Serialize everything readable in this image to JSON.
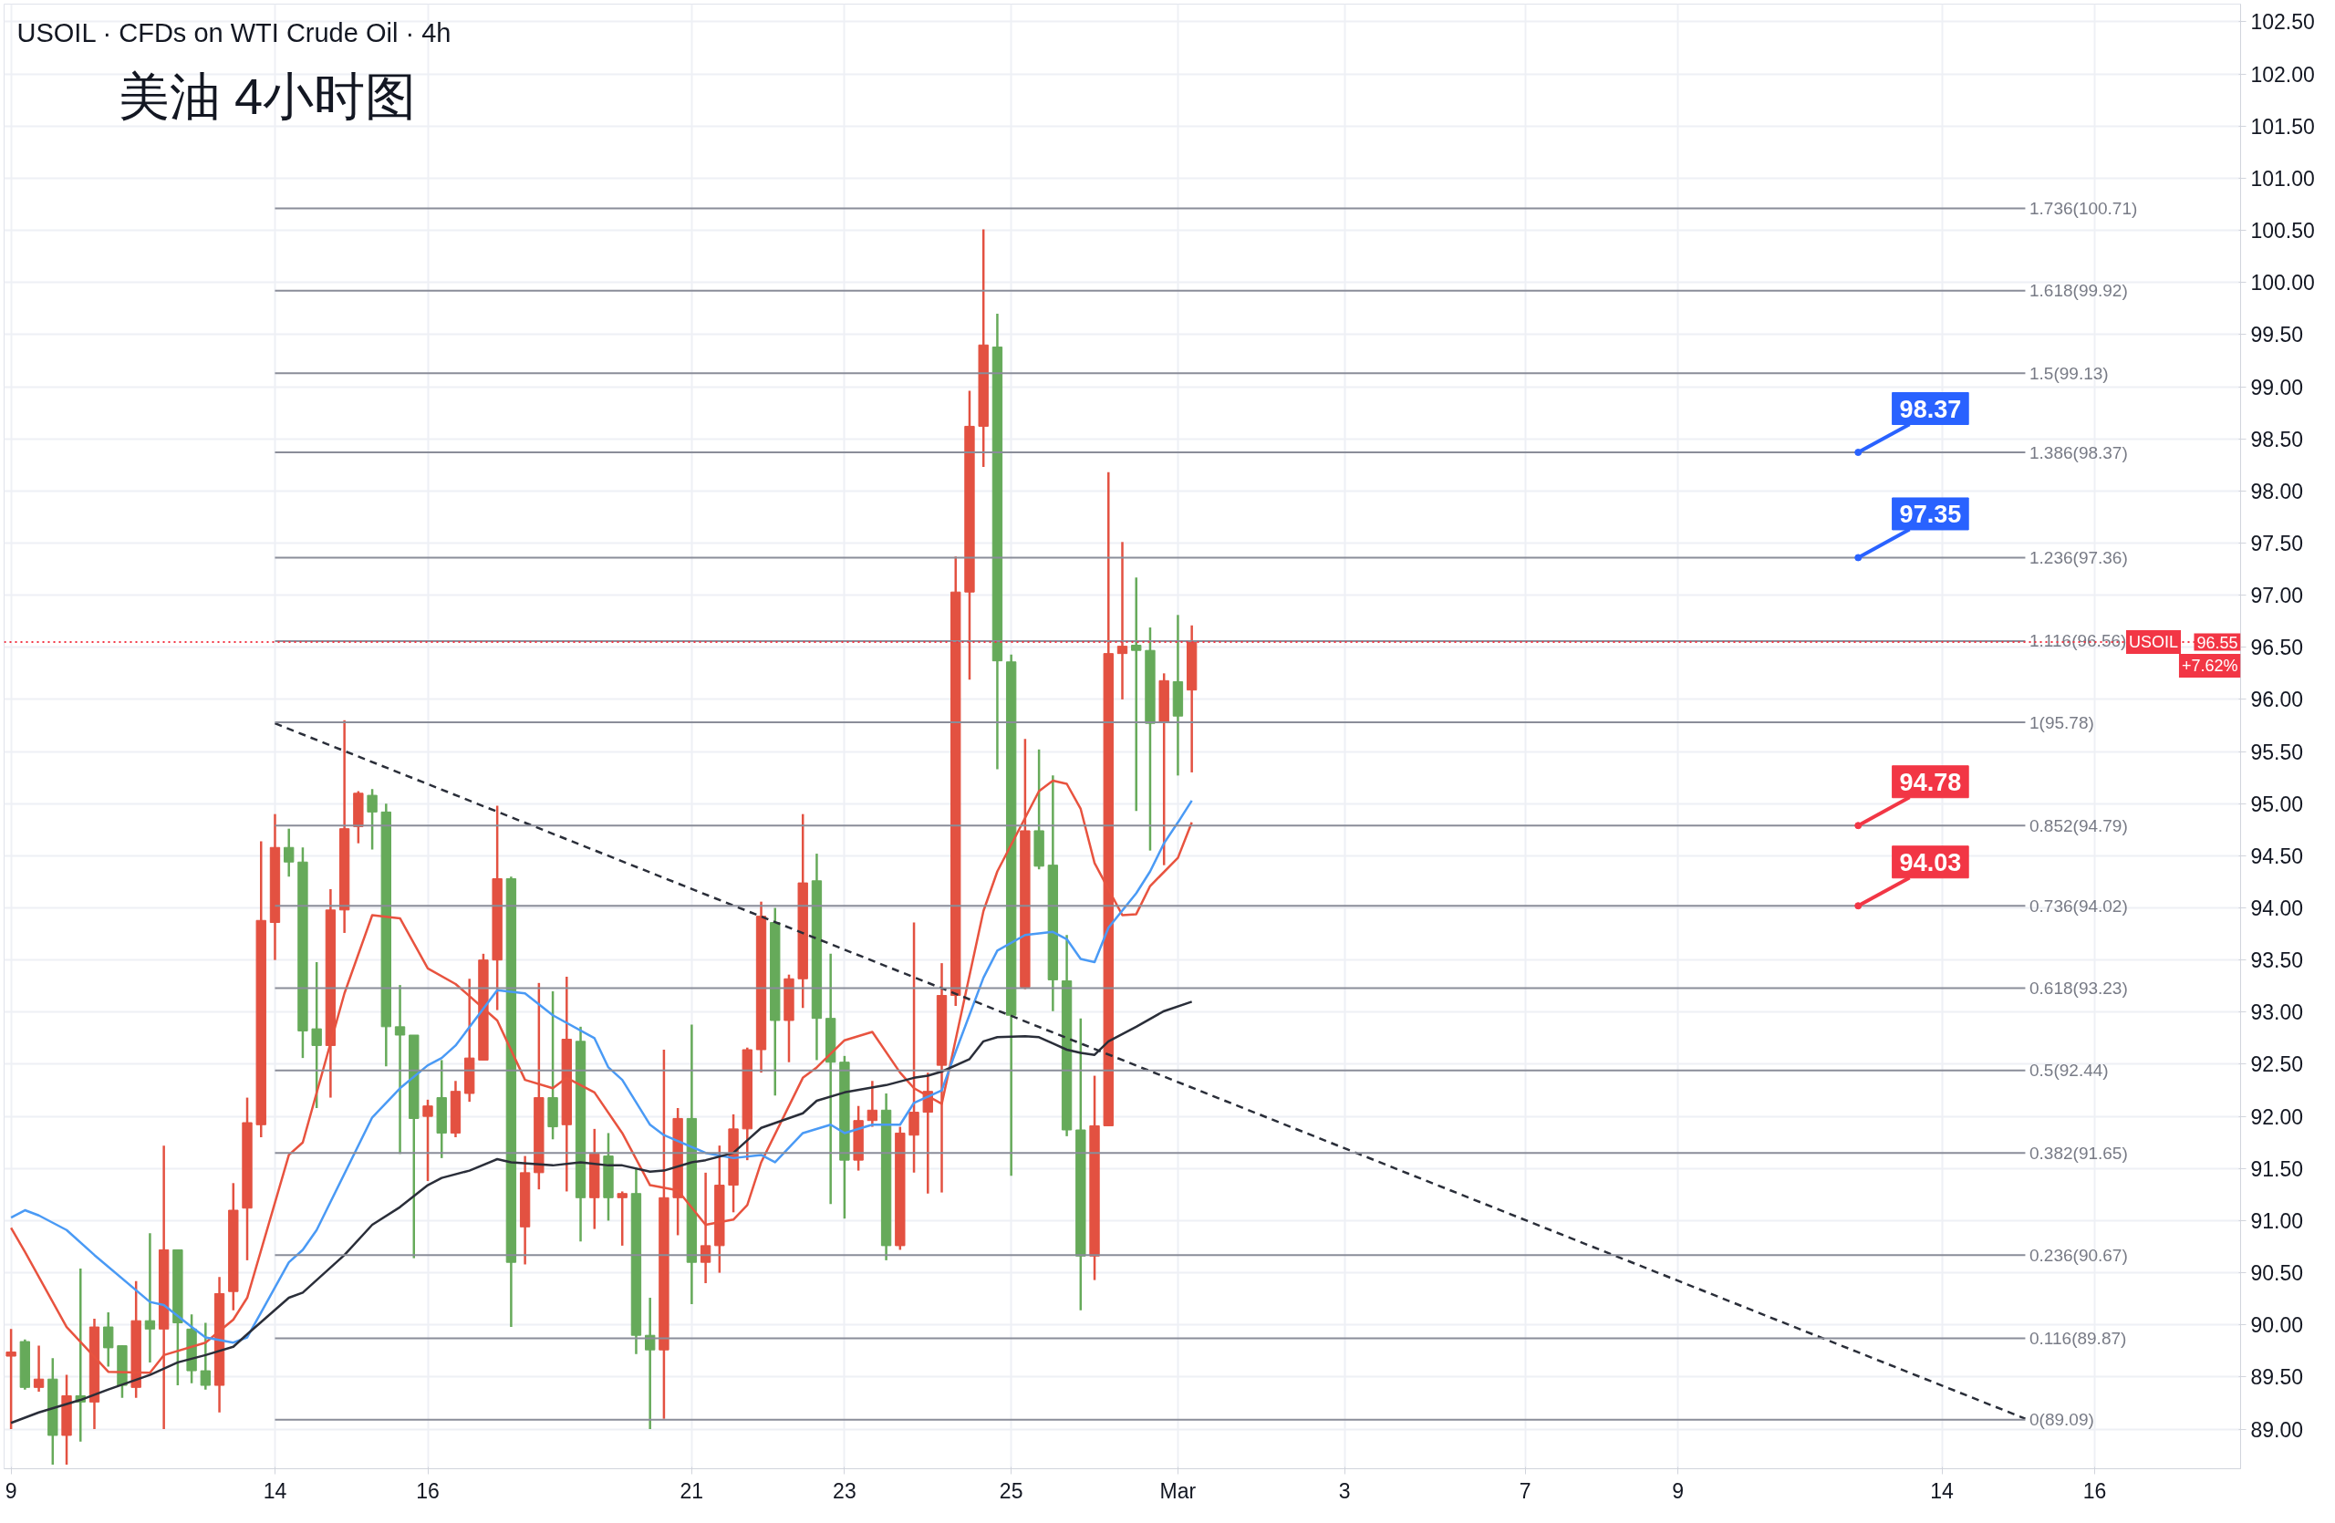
{
  "chart_data": {
    "type": "candlestick",
    "title": "USOIL · CFDs on WTI Crude Oil · 4h",
    "subtitle": "美油 4小时图",
    "categories": [
      "9",
      null,
      null,
      null,
      null,
      null,
      null,
      null,
      null,
      null,
      null,
      null,
      null,
      null,
      null,
      null,
      null,
      null,
      null,
      "14",
      null,
      null,
      null,
      null,
      null,
      null,
      null,
      null,
      null,
      null,
      "16",
      null,
      null,
      null,
      null,
      null,
      null,
      null,
      null,
      null,
      null,
      null,
      null,
      null,
      null,
      null,
      null,
      null,
      null,
      "21",
      null,
      null,
      null,
      null,
      null,
      null,
      null,
      null,
      null,
      null,
      "23",
      null,
      null,
      null,
      null,
      null,
      null,
      null,
      null,
      null,
      null,
      null,
      "25",
      null,
      null,
      null,
      null,
      null,
      null,
      null,
      null,
      null,
      null,
      null,
      "Mar",
      null,
      null,
      null,
      null,
      null,
      null,
      null,
      null,
      null,
      null,
      null,
      "3",
      null,
      null,
      null,
      null,
      null,
      null,
      null,
      null,
      null,
      null,
      null,
      null,
      "7",
      null,
      null,
      null,
      null,
      null,
      null,
      null,
      null,
      null,
      null,
      "9",
      null,
      null,
      null,
      null,
      null,
      null,
      null,
      null,
      null,
      null,
      null,
      null,
      null,
      null,
      null,
      null,
      null,
      null,
      "14",
      null,
      null,
      null,
      null,
      null,
      null,
      null,
      null,
      null,
      null,
      "16",
      null,
      null,
      null,
      null,
      null,
      null,
      null,
      null,
      null,
      null
    ],
    "ohlc": [
      [
        89.7,
        89.96,
        89.0,
        89.74
      ],
      [
        89.84,
        89.86,
        89.38,
        89.4
      ],
      [
        89.4,
        89.8,
        89.36,
        89.48
      ],
      [
        89.48,
        89.68,
        88.66,
        88.94
      ],
      [
        88.94,
        89.52,
        88.66,
        89.32
      ],
      [
        89.32,
        90.54,
        88.88,
        89.26
      ],
      [
        89.26,
        90.06,
        89.0,
        89.98
      ],
      [
        89.98,
        90.12,
        89.6,
        89.78
      ],
      [
        89.8,
        89.8,
        89.3,
        89.42
      ],
      [
        89.4,
        90.42,
        89.3,
        90.04
      ],
      [
        90.04,
        90.88,
        89.64,
        89.96
      ],
      [
        89.96,
        91.72,
        89.0,
        90.72
      ],
      [
        90.72,
        90.72,
        89.42,
        90.02
      ],
      [
        89.96,
        90.1,
        89.44,
        89.56
      ],
      [
        89.56,
        90.02,
        89.38,
        89.42
      ],
      [
        89.42,
        90.46,
        89.16,
        90.3
      ],
      [
        90.32,
        91.36,
        90.14,
        91.1
      ],
      [
        91.12,
        92.18,
        90.62,
        91.94
      ],
      [
        91.92,
        94.64,
        91.8,
        93.88
      ],
      [
        93.86,
        94.9,
        93.5,
        94.58
      ],
      [
        94.58,
        94.76,
        94.3,
        94.44
      ],
      [
        94.44,
        94.58,
        92.56,
        92.82
      ],
      [
        92.84,
        93.48,
        92.08,
        92.68
      ],
      [
        92.68,
        94.18,
        92.18,
        93.98
      ],
      [
        93.98,
        95.8,
        93.76,
        94.76
      ],
      [
        94.78,
        95.12,
        94.62,
        95.1
      ],
      [
        95.08,
        95.14,
        94.56,
        94.92
      ],
      [
        94.92,
        95.0,
        92.48,
        92.86
      ],
      [
        92.86,
        93.26,
        91.64,
        92.78
      ],
      [
        92.78,
        92.78,
        90.64,
        91.98
      ],
      [
        92.0,
        92.16,
        91.38,
        92.1
      ],
      [
        92.18,
        92.54,
        91.6,
        91.84
      ],
      [
        91.84,
        92.34,
        91.8,
        92.24
      ],
      [
        92.22,
        93.32,
        92.14,
        92.56
      ],
      [
        92.54,
        93.56,
        92.54,
        93.5
      ],
      [
        93.5,
        94.98,
        93.02,
        94.28
      ],
      [
        94.28,
        94.3,
        89.98,
        90.6
      ],
      [
        90.94,
        91.62,
        90.58,
        91.46
      ],
      [
        91.46,
        93.28,
        91.3,
        92.18
      ],
      [
        92.18,
        93.2,
        91.78,
        91.9
      ],
      [
        91.92,
        93.34,
        91.28,
        92.74
      ],
      [
        92.72,
        92.86,
        90.8,
        91.22
      ],
      [
        91.22,
        91.88,
        90.92,
        91.64
      ],
      [
        91.62,
        91.84,
        91.0,
        91.22
      ],
      [
        91.22,
        91.28,
        90.76,
        91.26
      ],
      [
        91.26,
        91.5,
        89.72,
        89.9
      ],
      [
        89.9,
        90.26,
        89.0,
        89.76
      ],
      [
        89.76,
        92.64,
        89.1,
        91.22
      ],
      [
        91.22,
        92.08,
        90.86,
        91.98
      ],
      [
        91.98,
        92.88,
        90.2,
        90.6
      ],
      [
        90.6,
        91.46,
        90.4,
        90.76
      ],
      [
        90.76,
        91.72,
        90.5,
        91.34
      ],
      [
        91.34,
        92.02,
        91.08,
        91.88
      ],
      [
        91.88,
        92.66,
        91.58,
        92.64
      ],
      [
        92.64,
        94.06,
        92.42,
        93.92
      ],
      [
        93.86,
        94.0,
        92.2,
        92.92
      ],
      [
        92.92,
        93.36,
        92.52,
        93.32
      ],
      [
        93.32,
        94.9,
        93.04,
        94.24
      ],
      [
        94.26,
        94.52,
        92.54,
        92.94
      ],
      [
        92.94,
        93.56,
        91.16,
        92.52
      ],
      [
        92.52,
        92.58,
        91.02,
        91.58
      ],
      [
        91.58,
        92.1,
        91.48,
        91.96
      ],
      [
        91.96,
        92.34,
        91.9,
        92.06
      ],
      [
        92.06,
        92.22,
        90.62,
        90.76
      ],
      [
        90.76,
        91.9,
        90.72,
        91.84
      ],
      [
        91.82,
        93.86,
        91.46,
        92.04
      ],
      [
        92.04,
        92.42,
        91.26,
        92.24
      ],
      [
        92.49,
        93.47,
        91.27,
        93.16
      ],
      [
        93.16,
        97.37,
        93.06,
        97.03
      ],
      [
        97.03,
        98.96,
        96.19,
        98.62
      ],
      [
        98.62,
        100.51,
        98.23,
        99.4
      ],
      [
        99.38,
        99.7,
        95.33,
        96.37
      ],
      [
        96.36,
        96.43,
        91.43,
        92.97
      ],
      [
        93.24,
        95.62,
        93.22,
        94.74
      ],
      [
        94.74,
        95.52,
        94.37,
        94.4
      ],
      [
        94.41,
        95.27,
        93.01,
        93.31
      ],
      [
        93.3,
        93.74,
        91.81,
        91.87
      ],
      [
        91.87,
        92.94,
        90.14,
        90.66
      ],
      [
        90.66,
        92.39,
        90.43,
        91.91
      ],
      [
        91.91,
        98.18,
        91.91,
        96.44
      ],
      [
        96.44,
        97.51,
        96.0,
        96.51
      ],
      [
        96.52,
        97.17,
        94.93,
        96.47
      ],
      [
        96.47,
        96.69,
        94.55,
        95.77
      ],
      [
        95.78,
        96.25,
        94.41,
        96.18
      ],
      [
        96.17,
        96.81,
        95.27,
        95.84
      ],
      [
        96.09,
        96.71,
        95.3,
        96.55
      ],
      null,
      null,
      null,
      null,
      null,
      null,
      null,
      null,
      null,
      null,
      null,
      null,
      null,
      null,
      null,
      null,
      null,
      null,
      null,
      null,
      null,
      null,
      null,
      null,
      null,
      null,
      null,
      null,
      null,
      null,
      null,
      null,
      null,
      null,
      null,
      null,
      null,
      null,
      null,
      null,
      null,
      null,
      null,
      null,
      null,
      null,
      null,
      null,
      null,
      null,
      null,
      null,
      null,
      null,
      null,
      null,
      null,
      null,
      null,
      null,
      null,
      null,
      null,
      null,
      null,
      null,
      null,
      null,
      null,
      null,
      null,
      null,
      null,
      null,
      null
    ],
    "colors": [
      "#e35141",
      "#66aa5a",
      "#e35141",
      "#66aa5a",
      "#e35141",
      "#66aa5a",
      "#e35141",
      "#66aa5a",
      "#66aa5a",
      "#e35141",
      "#66aa5a",
      "#e35141",
      "#66aa5a",
      "#66aa5a",
      "#66aa5a",
      "#e35141",
      "#e35141",
      "#e35141",
      "#e35141",
      "#e35141",
      "#66aa5a",
      "#66aa5a",
      "#66aa5a",
      "#e35141",
      "#e35141",
      "#e35141",
      "#66aa5a",
      "#66aa5a",
      "#66aa5a",
      "#66aa5a",
      "#e35141",
      "#66aa5a",
      "#e35141",
      "#e35141",
      "#e35141",
      "#e35141",
      "#66aa5a",
      "#e35141",
      "#e35141",
      "#66aa5a",
      "#e35141",
      "#66aa5a",
      "#e35141",
      "#66aa5a",
      "#e35141",
      "#66aa5a",
      "#66aa5a",
      "#e35141",
      "#e35141",
      "#66aa5a",
      "#e35141",
      "#e35141",
      "#e35141",
      "#e35141",
      "#e35141",
      "#66aa5a",
      "#e35141",
      "#e35141",
      "#66aa5a",
      "#66aa5a",
      "#66aa5a",
      "#e35141",
      "#e35141",
      "#66aa5a",
      "#e35141",
      "#e35141",
      "#e35141",
      "#e35141",
      "#e35141",
      "#e35141",
      "#e35141",
      "#66aa5a",
      "#66aa5a",
      "#e35141",
      "#66aa5a",
      "#66aa5a",
      "#66aa5a",
      "#66aa5a",
      "#e35141",
      "#e35141",
      "#e35141",
      "#66aa5a",
      "#66aa5a",
      "#e35141",
      "#66aa5a",
      "#e35141",
      null,
      null,
      null,
      null,
      null,
      null,
      null,
      null,
      null,
      null,
      null,
      null,
      null,
      null,
      null,
      null,
      null,
      null,
      null,
      null,
      null,
      null,
      null,
      null,
      null,
      null,
      null,
      null,
      null,
      null,
      null,
      null,
      null,
      null,
      null,
      null,
      null,
      null,
      null,
      null,
      null,
      null,
      null,
      null,
      null,
      null,
      null,
      null,
      null,
      null,
      null,
      null,
      null,
      null,
      null,
      null,
      null,
      null,
      null,
      null,
      null,
      null,
      null,
      null,
      null,
      null,
      null,
      null,
      null,
      null,
      null,
      null,
      null,
      null,
      null
    ],
    "series": [
      {
        "type": "line",
        "color": "#e8533f",
        "values": [
          90.93,
          90.7,
          null,
          null,
          89.98,
          null,
          null,
          89.55,
          null,
          null,
          89.54,
          89.71,
          null,
          null,
          89.83,
          null,
          90.05,
          90.26,
          null,
          null,
          91.63,
          91.75,
          null,
          null,
          93.18,
          null,
          93.93,
          null,
          93.9,
          null,
          93.42,
          null,
          93.27,
          null,
          null,
          92.92,
          null,
          92.35,
          null,
          92.27,
          92.37,
          null,
          92.23,
          null,
          91.84,
          null,
          91.34,
          null,
          91.29,
          null,
          90.96,
          null,
          91.01,
          91.15,
          91.56,
          null,
          null,
          92.37,
          92.47,
          null,
          92.73,
          null,
          92.81,
          null,
          92.42,
          92.27,
          null,
          92.12,
          null,
          null,
          93.97,
          94.35,
          null,
          null,
          95.12,
          95.22,
          95.19,
          94.95,
          94.43,
          null,
          93.93,
          93.94,
          94.21,
          null,
          94.48,
          94.82,
          null,
          null,
          null,
          null,
          null,
          null,
          null,
          null,
          null,
          null,
          null,
          null,
          null,
          null,
          null,
          null,
          null,
          null,
          null,
          null,
          null,
          null,
          null,
          null,
          null,
          null,
          null,
          null,
          null,
          null,
          null,
          null,
          null,
          null,
          null,
          null,
          null,
          null,
          null,
          null,
          null,
          null,
          null,
          null,
          null,
          null,
          null,
          null,
          null,
          null,
          null,
          null,
          null,
          null,
          null,
          null,
          null,
          null,
          null,
          null,
          null,
          null,
          null,
          null,
          null,
          null,
          null,
          null,
          null,
          null,
          null,
          null,
          null,
          null,
          null
        ]
      },
      {
        "type": "line",
        "color": "#4a9af5",
        "values": [
          91.03,
          91.1,
          91.05,
          null,
          90.91,
          null,
          90.67,
          null,
          null,
          null,
          90.22,
          90.19,
          null,
          89.98,
          89.88,
          null,
          89.83,
          89.88,
          90.12,
          null,
          90.6,
          90.72,
          90.91,
          null,
          null,
          null,
          91.99,
          null,
          92.27,
          null,
          92.49,
          92.56,
          92.68,
          null,
          null,
          93.21,
          null,
          93.18,
          null,
          92.97,
          null,
          null,
          92.75,
          92.47,
          92.35,
          null,
          91.92,
          91.82,
          null,
          null,
          91.65,
          null,
          91.6,
          null,
          91.63,
          91.56,
          null,
          91.84,
          null,
          91.92,
          91.84,
          null,
          91.92,
          null,
          91.92,
          92.13,
          null,
          92.25,
          92.62,
          null,
          93.33,
          93.59,
          null,
          93.74,
          null,
          93.77,
          93.7,
          93.51,
          93.48,
          93.81,
          null,
          94.14,
          94.35,
          94.62,
          94.82,
          95.03,
          null,
          null,
          null,
          null,
          null,
          null,
          null,
          null,
          null,
          null,
          null,
          null,
          null,
          null,
          null,
          null,
          null,
          null,
          null,
          null,
          null,
          null,
          null,
          null,
          null,
          null,
          null,
          null,
          null,
          null,
          null,
          null,
          null,
          null,
          null,
          null,
          null,
          null,
          null,
          null,
          null,
          null,
          null,
          null,
          null,
          null,
          null,
          null,
          null,
          null,
          null,
          null,
          null,
          null,
          null,
          null,
          null,
          null,
          null,
          null,
          null,
          null,
          null,
          null,
          null,
          null,
          null,
          null,
          null,
          null,
          null,
          null,
          null,
          null,
          null
        ]
      },
      {
        "type": "line",
        "color": "#2a2e39",
        "values": [
          89.06,
          null,
          89.16,
          null,
          null,
          89.28,
          null,
          89.38,
          null,
          null,
          89.52,
          null,
          89.64,
          null,
          89.71,
          null,
          89.79,
          89.91,
          null,
          null,
          90.26,
          90.31,
          90.43,
          null,
          90.67,
          null,
          90.96,
          null,
          91.13,
          null,
          91.34,
          91.41,
          null,
          91.48,
          null,
          91.59,
          91.56,
          null,
          null,
          91.53,
          null,
          91.56,
          null,
          91.53,
          91.53,
          null,
          91.47,
          91.48,
          null,
          91.56,
          91.58,
          null,
          91.65,
          91.77,
          91.89,
          null,
          null,
          92.03,
          92.15,
          null,
          92.23,
          null,
          null,
          92.3,
          null,
          92.37,
          92.39,
          92.43,
          null,
          92.55,
          92.72,
          92.76,
          null,
          92.77,
          92.76,
          92.7,
          92.64,
          92.61,
          92.59,
          92.72,
          null,
          92.86,
          null,
          93.01,
          null,
          93.1,
          null,
          null,
          null,
          null,
          null,
          null,
          null,
          null,
          null,
          null,
          null,
          null,
          null,
          null,
          null,
          null,
          null,
          null,
          null,
          null,
          null,
          null,
          null,
          null,
          null,
          null,
          null,
          null,
          null,
          null,
          null,
          null,
          null,
          null,
          null,
          null,
          null,
          null,
          null,
          null,
          null,
          null,
          null,
          null,
          null,
          null,
          null,
          null,
          null,
          null,
          null,
          null,
          null,
          null,
          null,
          null,
          null,
          null,
          null,
          null,
          null,
          null,
          null,
          null,
          null,
          null,
          null,
          null,
          null,
          null,
          null,
          null,
          null,
          null,
          null
        ]
      },
      {
        "type": "line",
        "color": "#2a2e39",
        "line_style": "dashed",
        "values": [
          null,
          null,
          null,
          null,
          null,
          null,
          null,
          null,
          null,
          null,
          null,
          null,
          null,
          null,
          null,
          null,
          null,
          null,
          null,
          95.77,
          null,
          null,
          null,
          null,
          null,
          null,
          null,
          null,
          null,
          null,
          null,
          null,
          null,
          null,
          null,
          null,
          null,
          null,
          null,
          null,
          null,
          null,
          null,
          null,
          null,
          null,
          null,
          null,
          null,
          null,
          null,
          null,
          null,
          null,
          null,
          null,
          null,
          null,
          null,
          null,
          null,
          null,
          null,
          null,
          null,
          null,
          null,
          null,
          null,
          null,
          null,
          null,
          null,
          null,
          null,
          null,
          null,
          null,
          null,
          null,
          null,
          null,
          null,
          null,
          null,
          null,
          null,
          null,
          null,
          null,
          null,
          null,
          null,
          null,
          null,
          null,
          null,
          null,
          null,
          null,
          null,
          null,
          null,
          null,
          null,
          null,
          null,
          null,
          null,
          null,
          null,
          null,
          null,
          null,
          null,
          null,
          null,
          null,
          null,
          null,
          null,
          null,
          null,
          null,
          null,
          null,
          null,
          null,
          null,
          null,
          null,
          null,
          null,
          null,
          null,
          null,
          null,
          null,
          null,
          null,
          null,
          null,
          null,
          null,
          null,
          89.1,
          null,
          null,
          null,
          null,
          null,
          null,
          null,
          null,
          null,
          null,
          null,
          null,
          null,
          null,
          null
        ]
      }
    ],
    "ylim": [
      88.62,
      102.67
    ],
    "yticks": [
      {
        "value": 89,
        "label": "89.00"
      },
      {
        "value": 89.5,
        "label": "89.50"
      },
      {
        "value": 90,
        "label": "90.00"
      },
      {
        "value": 90.5,
        "label": "90.50"
      },
      {
        "value": 91,
        "label": "91.00"
      },
      {
        "value": 91.5,
        "label": "91.50"
      },
      {
        "value": 92,
        "label": "92.00"
      },
      {
        "value": 92.5,
        "label": "92.50"
      },
      {
        "value": 93,
        "label": "93.00"
      },
      {
        "value": 93.5,
        "label": "93.50"
      },
      {
        "value": 94,
        "label": "94.00"
      },
      {
        "value": 94.5,
        "label": "94.50"
      },
      {
        "value": 95,
        "label": "95.00"
      },
      {
        "value": 95.5,
        "label": "95.50"
      },
      {
        "value": 96,
        "label": "96.00"
      },
      {
        "value": 96.5,
        "label": "96.50"
      },
      {
        "value": 97,
        "label": "97.00"
      },
      {
        "value": 97.5,
        "label": "97.50"
      },
      {
        "value": 98,
        "label": "98.00"
      },
      {
        "value": 98.5,
        "label": "98.50"
      },
      {
        "value": 99,
        "label": "99.00"
      },
      {
        "value": 99.5,
        "label": "99.50"
      },
      {
        "value": 100,
        "label": "100.00"
      },
      {
        "value": 100.5,
        "label": "100.50"
      },
      {
        "value": 101,
        "label": "101.00"
      },
      {
        "value": 101.5,
        "label": "101.50"
      },
      {
        "value": 102,
        "label": "102.00"
      },
      {
        "value": 102.5,
        "label": "102.50"
      }
    ],
    "grid": true,
    "ref_lines": [
      {
        "axis": "y",
        "value": 100.71,
        "label": "1.736(100.71)",
        "color": "#8a8d99"
      },
      {
        "axis": "y",
        "value": 99.92,
        "label": "1.618(99.92)",
        "color": "#8a8d99"
      },
      {
        "axis": "y",
        "value": 99.13,
        "label": "1.5(99.13)",
        "color": "#8a8d99"
      },
      {
        "axis": "y",
        "value": 98.37,
        "label": "1.386(98.37)",
        "color": "#8a8d99"
      },
      {
        "axis": "y",
        "value": 97.36,
        "label": "1.236(97.36)",
        "color": "#8a8d99"
      },
      {
        "axis": "y",
        "value": 96.56,
        "label": "1.116(96.56)",
        "color": "#8a8d99"
      },
      {
        "axis": "y",
        "value": 95.78,
        "label": "1(95.78)",
        "color": "#8a8d99"
      },
      {
        "axis": "y",
        "value": 94.79,
        "label": "0.852(94.79)",
        "color": "#8a8d99"
      },
      {
        "axis": "y",
        "value": 94.02,
        "label": "0.736(94.02)",
        "color": "#8a8d99"
      },
      {
        "axis": "y",
        "value": 93.23,
        "label": "0.618(93.23)",
        "color": "#8a8d99"
      },
      {
        "axis": "y",
        "value": 92.44,
        "label": "0.5(92.44)",
        "color": "#8a8d99"
      },
      {
        "axis": "y",
        "value": 91.65,
        "label": "0.382(91.65)",
        "color": "#8a8d99"
      },
      {
        "axis": "y",
        "value": 90.67,
        "label": "0.236(90.67)",
        "color": "#8a8d99"
      },
      {
        "axis": "y",
        "value": 89.87,
        "label": "0.116(89.87)",
        "color": "#8a8d99"
      },
      {
        "axis": "y",
        "value": 89.09,
        "label": "0(89.09)",
        "color": "#8a8d99"
      },
      {
        "axis": "y",
        "value": 96.55,
        "label": "USOIL",
        "color": "#f23645",
        "line_style": "dotted"
      }
    ],
    "annotations": [
      {
        "text": "98.37",
        "y": 98.37
      },
      {
        "text": "97.35",
        "y": 97.36
      },
      {
        "text": "94.78",
        "y": 94.79
      },
      {
        "text": "94.03",
        "y": 94.02
      },
      {
        "text": "96.55",
        "y": 96.55
      },
      "+7.62%"
    ]
  }
}
